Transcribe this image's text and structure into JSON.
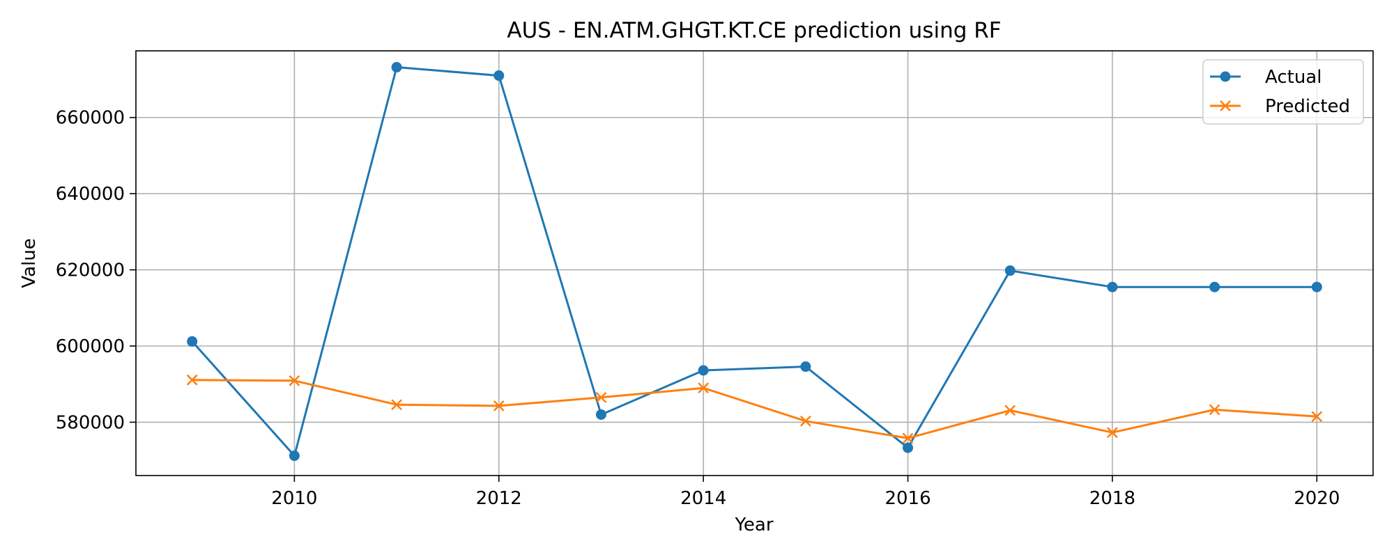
{
  "chart_data": {
    "type": "line",
    "title": "AUS - EN.ATM.GHGT.KT.CE prediction using RF",
    "xlabel": "Year",
    "ylabel": "Value",
    "x": [
      2009,
      2010,
      2011,
      2012,
      2013,
      2014,
      2015,
      2016,
      2017,
      2018,
      2019,
      2020
    ],
    "xlim": [
      2008.45,
      2020.55
    ],
    "ylim": [
      566000,
      677500
    ],
    "xticks": [
      2010,
      2012,
      2014,
      2016,
      2018,
      2020
    ],
    "yticks": [
      580000,
      600000,
      620000,
      640000,
      660000
    ],
    "grid": true,
    "legend_position": "top-right",
    "series": [
      {
        "name": "Actual",
        "marker": "circle",
        "color": "#1f77b4",
        "values": [
          601200,
          571200,
          673200,
          671000,
          582000,
          593600,
          594600,
          573300,
          619800,
          615500,
          615500,
          615500
        ]
      },
      {
        "name": "Predicted",
        "marker": "x",
        "color": "#ff7f0e",
        "values": [
          591100,
          590900,
          584600,
          584300,
          586500,
          589000,
          580300,
          575800,
          583100,
          577300,
          583300,
          581500
        ]
      }
    ]
  }
}
